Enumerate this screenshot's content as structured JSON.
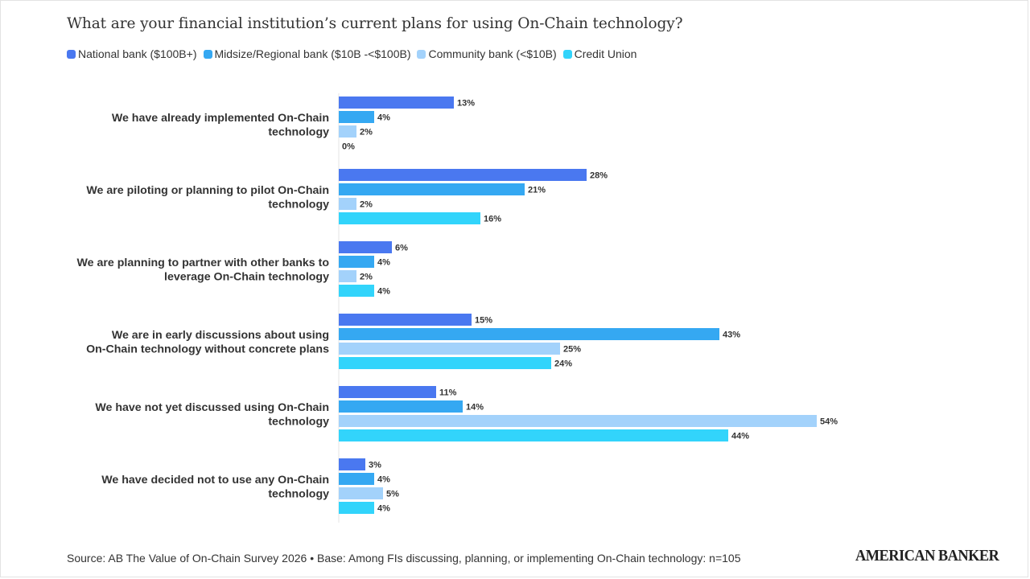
{
  "chart_data": {
    "type": "bar",
    "orientation": "horizontal",
    "title": "What are your financial institution’s current plans for using On-Chain technology?",
    "categories": [
      [
        "We have already implemented On-Chain",
        "technology"
      ],
      [
        "We are piloting or planning to pilot On-Chain",
        "technology"
      ],
      [
        "We are planning to partner with other banks to",
        "leverage On-Chain technology"
      ],
      [
        "We are in early discussions about using",
        "On-Chain technology without concrete plans"
      ],
      [
        "We have not yet discussed using On-Chain",
        "technology"
      ],
      [
        "We have decided not to use any On-Chain",
        "technology"
      ]
    ],
    "series": [
      {
        "name": "National bank ($100B+)",
        "color": "#4a78f0",
        "values": [
          13,
          28,
          6,
          15,
          11,
          3
        ]
      },
      {
        "name": "Midsize/Regional bank ($10B -<$100B)",
        "color": "#35a8f2",
        "values": [
          4,
          21,
          4,
          43,
          14,
          4
        ]
      },
      {
        "name": "Community bank (<$10B)",
        "color": "#a3d2fb",
        "values": [
          2,
          2,
          2,
          25,
          54,
          5
        ]
      },
      {
        "name": "Credit Union",
        "color": "#32d4fb",
        "values": [
          0,
          16,
          4,
          24,
          44,
          4
        ]
      }
    ],
    "value_suffix": "%",
    "legend_position": "top-left",
    "grid": false
  },
  "footer": {
    "source": "Source: AB The Value of On-Chain Survey 2026 • Base: Among FIs discussing, planning, or implementing On-Chain technology: n=105"
  },
  "brand": {
    "logo_text": "AMERICAN BANKER"
  }
}
